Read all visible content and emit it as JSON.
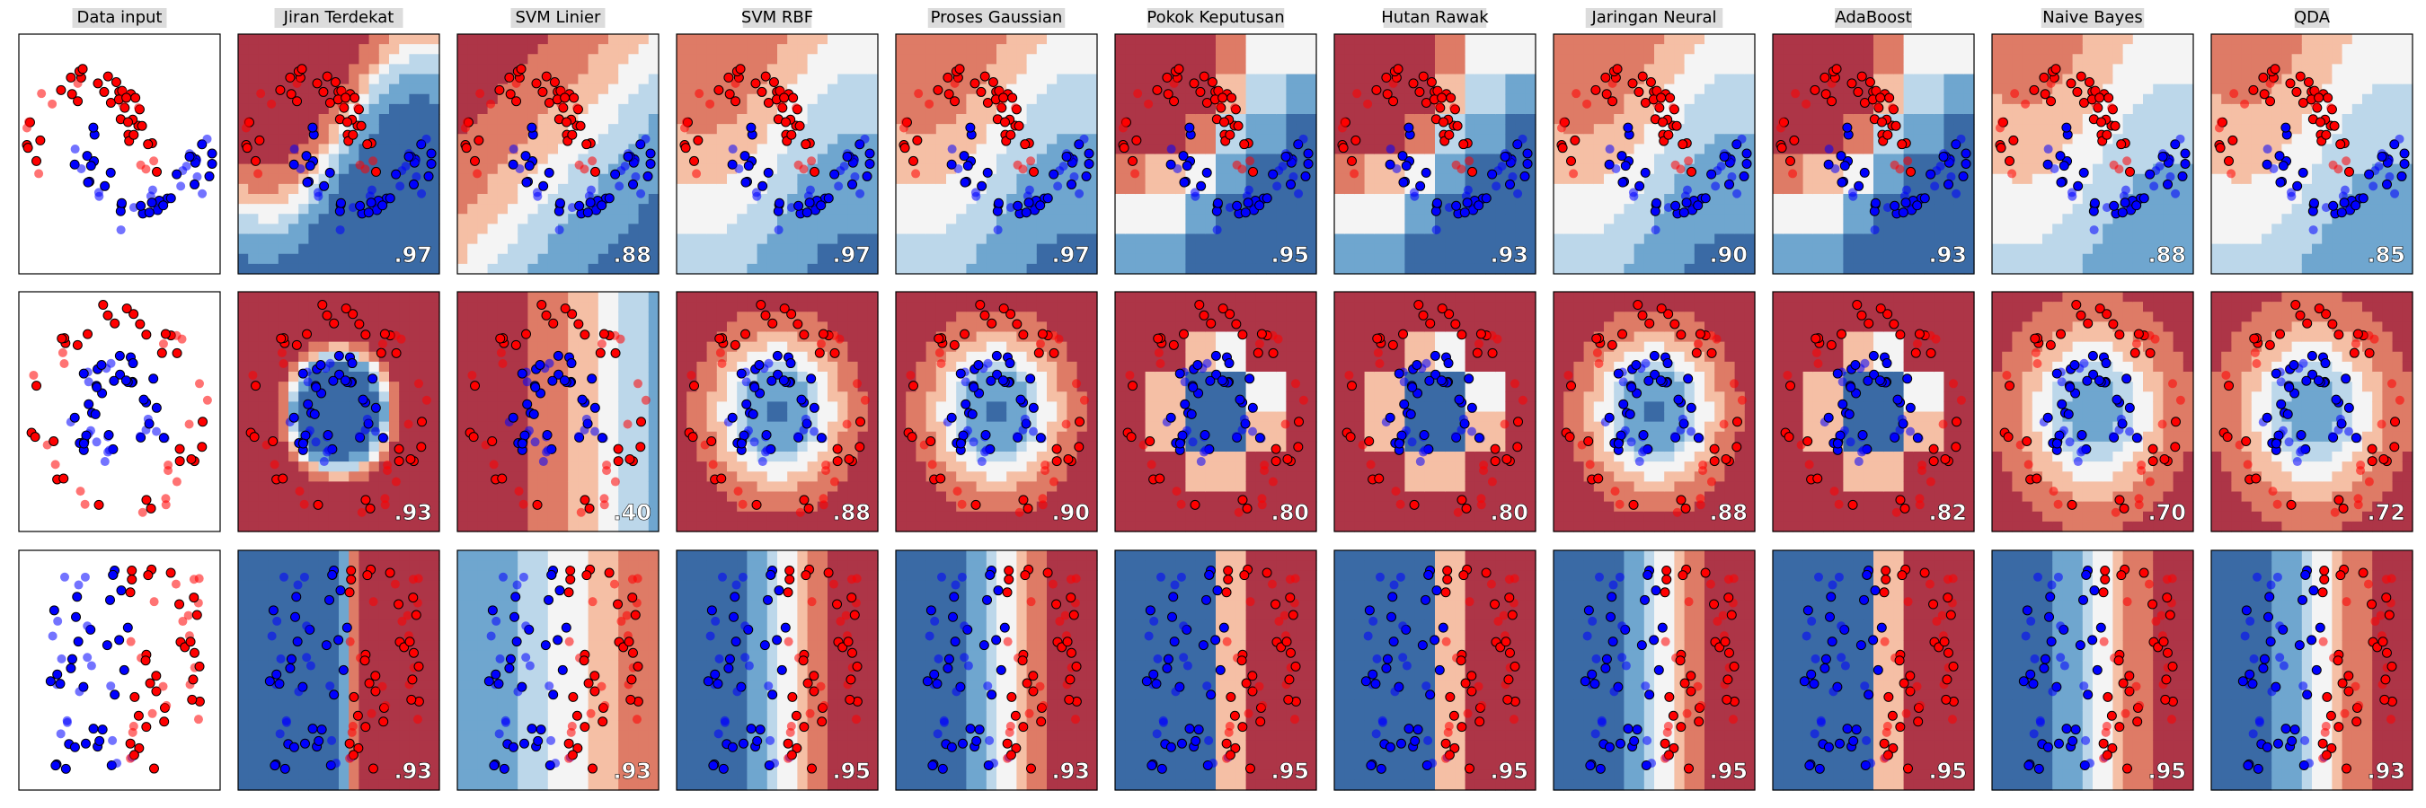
{
  "columns": [
    {
      "title": "Data input"
    },
    {
      "title": "Jiran Terdekat"
    },
    {
      "title": "SVM Linier"
    },
    {
      "title": "SVM RBF"
    },
    {
      "title": "Proses Gaussian"
    },
    {
      "title": "Pokok Keputusan"
    },
    {
      "title": "Hutan Rawak"
    },
    {
      "title": "Jaringan Neural"
    },
    {
      "title": "AdaBoost"
    },
    {
      "title": "Naive Bayes"
    },
    {
      "title": "QDA"
    }
  ],
  "rows": [
    {
      "scores": [
        ".97",
        ".88",
        ".97",
        ".97",
        ".95",
        ".93",
        ".90",
        ".93",
        ".88",
        ".85"
      ]
    },
    {
      "scores": [
        ".93",
        ".40",
        ".88",
        ".90",
        ".80",
        ".80",
        ".88",
        ".82",
        ".70",
        ".72"
      ]
    },
    {
      "scores": [
        ".93",
        ".93",
        ".95",
        ".93",
        ".95",
        ".95",
        ".95",
        ".95",
        ".95",
        ".93"
      ]
    }
  ]
}
